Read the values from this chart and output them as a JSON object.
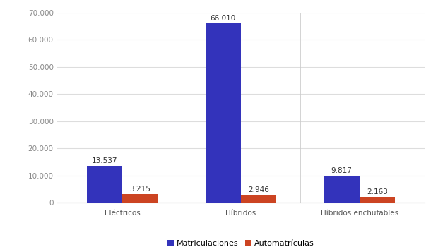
{
  "categories": [
    "Eléctricos",
    "Híbridos",
    "Híbridos enchufables"
  ],
  "matriculaciones": [
    13537,
    66010,
    9817
  ],
  "automatriculas": [
    3215,
    2946,
    2163
  ],
  "bar_color_blue": "#3333bb",
  "bar_color_orange": "#cc4422",
  "legend_labels": [
    "Matriculaciones",
    "Automatrículas"
  ],
  "ylim": [
    0,
    70000
  ],
  "yticks": [
    0,
    10000,
    20000,
    30000,
    40000,
    50000,
    60000,
    70000
  ],
  "background_color": "#ffffff",
  "bar_width": 0.3,
  "label_fontsize": 7.5,
  "tick_fontsize": 7.5,
  "legend_fontsize": 8,
  "grid_color": "#dddddd"
}
